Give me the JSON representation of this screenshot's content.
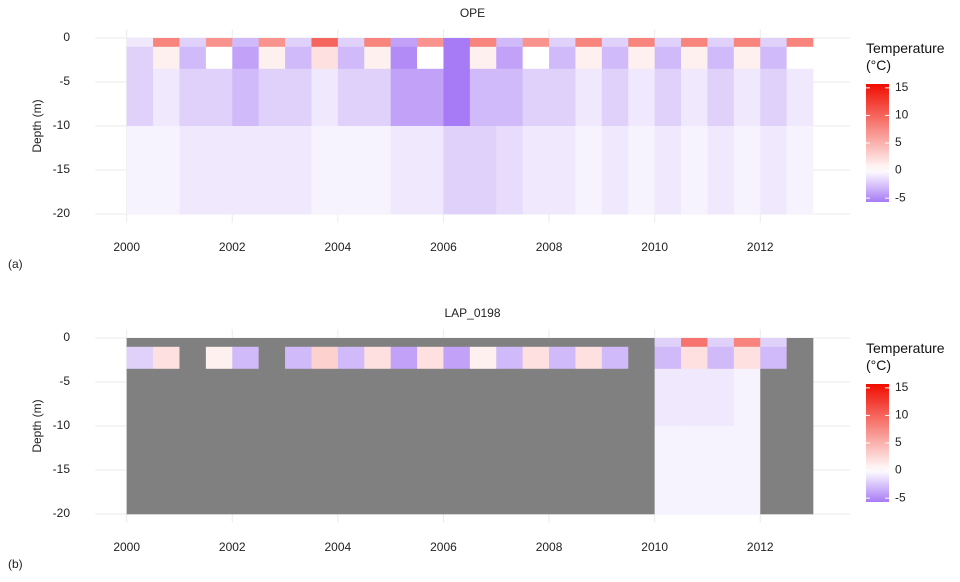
{
  "chart_data": [
    {
      "type": "heatmap",
      "title": "OPE",
      "panel_label": "(a)",
      "y_label": "Depth (m)",
      "legend_title": "Temperature (°C)",
      "xlim": [
        1999.4,
        2013.7
      ],
      "xticks": [
        2000,
        2002,
        2004,
        2006,
        2008,
        2010,
        2012
      ],
      "ylim": [
        -21,
        1
      ],
      "yticks": [
        0,
        -5,
        -10,
        -15,
        -20
      ],
      "zlim": [
        -5.7,
        15.7
      ],
      "zticks": [
        15,
        10,
        5,
        0,
        -5
      ],
      "midpoint": 0,
      "colors": {
        "low": "#a77bf5",
        "mid": "#ffffff",
        "high": "#f00d00",
        "na": "#808080"
      },
      "x_edges": [
        2000,
        2000.5,
        2001,
        2001.5,
        2002,
        2002.5,
        2003,
        2003.5,
        2004,
        2004.5,
        2005,
        2005.5,
        2006,
        2006.5,
        2007,
        2007.5,
        2008,
        2008.5,
        2009,
        2009.5,
        2010,
        2010.5,
        2011,
        2011.5,
        2012,
        2012.5,
        2013
      ],
      "y_edges": [
        0,
        -1,
        -3.5,
        -10,
        -20
      ],
      "z": [
        [
          -1,
          8,
          -2,
          7,
          -3,
          7,
          -2,
          10,
          -2,
          8,
          -4,
          7,
          -6,
          8,
          -3,
          7,
          -2,
          8,
          -2,
          8,
          -2,
          8,
          -2,
          8,
          -2,
          8
        ],
        [
          -2,
          1,
          -3,
          0,
          -4,
          1,
          -3,
          2,
          -3,
          1,
          -5,
          0,
          -7,
          1,
          -4,
          0,
          -3,
          1,
          -3,
          1,
          -3,
          1,
          -3,
          1,
          -3,
          0
        ],
        [
          -2,
          -1,
          -2,
          -2,
          -3,
          -2,
          -2,
          -1,
          -2,
          -2,
          -4,
          -4,
          -6,
          -3,
          -3,
          -2,
          -2,
          -1,
          -2,
          -1,
          -2,
          -1,
          -2,
          -1,
          -2,
          -1
        ],
        [
          -0.5,
          -0.5,
          -1,
          -1,
          -1,
          -1,
          -1,
          -0.5,
          -0.5,
          -0.5,
          -1,
          -1,
          -2,
          -2,
          -1.5,
          -1,
          -1,
          -0.5,
          -1,
          -0.5,
          -1,
          -0.5,
          -1,
          -0.5,
          -1,
          -0.5
        ]
      ]
    },
    {
      "type": "heatmap",
      "title": "LAP_0198",
      "panel_label": "(b)",
      "y_label": "Depth (m)",
      "legend_title": "Temperature (°C)",
      "xlim": [
        1999.4,
        2013.7
      ],
      "xticks": [
        2000,
        2002,
        2004,
        2006,
        2008,
        2010,
        2012
      ],
      "ylim": [
        -21,
        1
      ],
      "yticks": [
        0,
        -5,
        -10,
        -15,
        -20
      ],
      "zlim": [
        -5.7,
        15.7
      ],
      "zticks": [
        15,
        10,
        5,
        0,
        -5
      ],
      "midpoint": 0,
      "colors": {
        "low": "#a77bf5",
        "mid": "#ffffff",
        "high": "#f00d00",
        "na": "#808080"
      },
      "x_edges": [
        2000,
        2000.5,
        2001,
        2001.5,
        2002,
        2002.5,
        2003,
        2003.5,
        2004,
        2004.5,
        2005,
        2005.5,
        2006,
        2006.5,
        2007,
        2007.5,
        2008,
        2008.5,
        2009,
        2009.5,
        2010,
        2010.5,
        2011,
        2011.5,
        2012,
        2012.5,
        2013
      ],
      "y_edges": [
        0,
        -1,
        -3.5,
        -10,
        -20
      ],
      "z": [
        [
          null,
          null,
          null,
          null,
          null,
          null,
          null,
          null,
          null,
          null,
          null,
          null,
          null,
          null,
          null,
          null,
          null,
          null,
          null,
          null,
          -2,
          9,
          -2,
          8,
          -2,
          null
        ],
        [
          -2,
          2,
          null,
          1,
          -3,
          null,
          -3,
          3,
          -3,
          2,
          -4,
          2,
          -4,
          1,
          -3,
          2,
          -3,
          2,
          -3,
          null,
          -3,
          2,
          -3,
          2,
          -3,
          null
        ],
        [
          null,
          null,
          null,
          null,
          null,
          null,
          null,
          null,
          null,
          null,
          null,
          null,
          null,
          null,
          null,
          null,
          null,
          null,
          null,
          null,
          -1,
          -1,
          -1,
          -0.5,
          null,
          null
        ],
        [
          null,
          null,
          null,
          null,
          null,
          null,
          null,
          null,
          null,
          null,
          null,
          null,
          null,
          null,
          null,
          null,
          null,
          null,
          null,
          null,
          -0.5,
          -0.5,
          -0.5,
          -0.5,
          null,
          null
        ]
      ]
    }
  ]
}
